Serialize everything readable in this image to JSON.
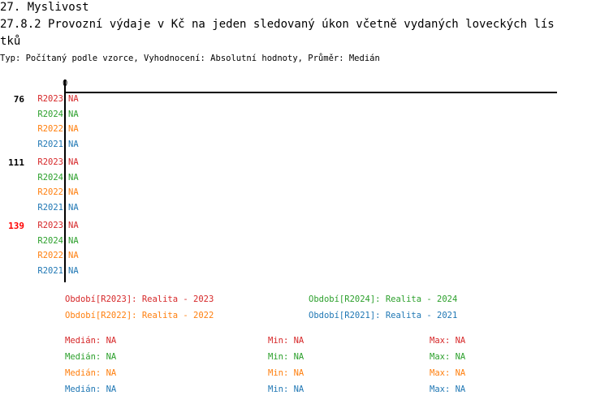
{
  "header": {
    "section": "27. Myslivost",
    "title_line1": "27.8.2 Provozní výdaje v Kč na jeden sledovaný úkon včetně vydaných loveckých lís",
    "title_line2": "tků",
    "subtitle": "Typ: Počítaný podle vzorce, Vyhodnocení: Absolutní hodnoty, Průměr: Medián"
  },
  "colors": {
    "R2023": "#d62728",
    "R2024": "#2ca02c",
    "R2022": "#ff7f0e",
    "R2021": "#1f77b4"
  },
  "chart_data": {
    "type": "bar",
    "orientation": "horizontal",
    "x_ticks": [
      "0"
    ],
    "groups": [
      {
        "label": "76",
        "highlight": false,
        "rows": [
          {
            "series": "R2023",
            "value": "NA"
          },
          {
            "series": "R2024",
            "value": "NA"
          },
          {
            "series": "R2022",
            "value": "NA"
          },
          {
            "series": "R2021",
            "value": "NA"
          }
        ]
      },
      {
        "label": "111",
        "highlight": false,
        "rows": [
          {
            "series": "R2023",
            "value": "NA"
          },
          {
            "series": "R2024",
            "value": "NA"
          },
          {
            "series": "R2022",
            "value": "NA"
          },
          {
            "series": "R2021",
            "value": "NA"
          }
        ]
      },
      {
        "label": "139",
        "highlight": true,
        "rows": [
          {
            "series": "R2023",
            "value": "NA"
          },
          {
            "series": "R2024",
            "value": "NA"
          },
          {
            "series": "R2022",
            "value": "NA"
          },
          {
            "series": "R2021",
            "value": "NA"
          }
        ]
      }
    ],
    "legend": [
      {
        "series": "R2023",
        "text": "Období[R2023]: Realita - 2023"
      },
      {
        "series": "R2024",
        "text": "Období[R2024]: Realita - 2024"
      },
      {
        "series": "R2022",
        "text": "Období[R2022]: Realita - 2022"
      },
      {
        "series": "R2021",
        "text": "Období[R2021]: Realita - 2021"
      }
    ],
    "stats": [
      {
        "series": "R2023",
        "median": "Medián: NA",
        "min": "Min: NA",
        "max": "Max: NA"
      },
      {
        "series": "R2024",
        "median": "Medián: NA",
        "min": "Min: NA",
        "max": "Max: NA"
      },
      {
        "series": "R2022",
        "median": "Medián: NA",
        "min": "Min: NA",
        "max": "Max: NA"
      },
      {
        "series": "R2021",
        "median": "Medián: NA",
        "min": "Min: NA",
        "max": "Max: NA"
      }
    ]
  }
}
